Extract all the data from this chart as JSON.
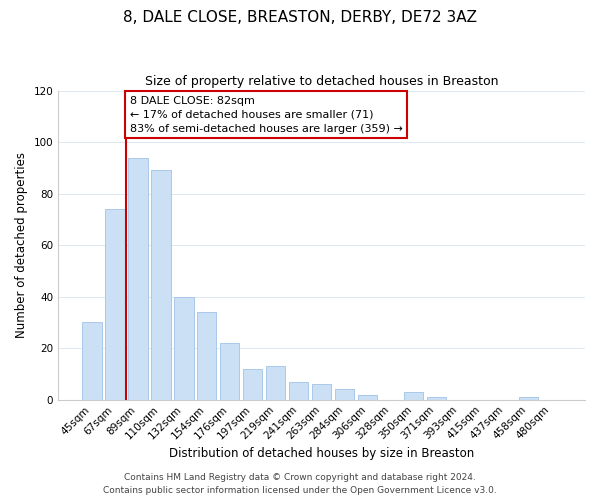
{
  "title": "8, DALE CLOSE, BREASTON, DERBY, DE72 3AZ",
  "subtitle": "Size of property relative to detached houses in Breaston",
  "xlabel": "Distribution of detached houses by size in Breaston",
  "ylabel": "Number of detached properties",
  "bar_labels": [
    "45sqm",
    "67sqm",
    "89sqm",
    "110sqm",
    "132sqm",
    "154sqm",
    "176sqm",
    "197sqm",
    "219sqm",
    "241sqm",
    "263sqm",
    "284sqm",
    "306sqm",
    "328sqm",
    "350sqm",
    "371sqm",
    "393sqm",
    "415sqm",
    "437sqm",
    "458sqm",
    "480sqm"
  ],
  "bar_values": [
    30,
    74,
    94,
    89,
    40,
    34,
    22,
    12,
    13,
    7,
    6,
    4,
    2,
    0,
    3,
    1,
    0,
    0,
    0,
    1,
    0
  ],
  "bar_color": "#cce0f5",
  "bar_edge_color": "#aac8e8",
  "vline_index": 2,
  "vline_color": "#cc0000",
  "annotation_text": "8 DALE CLOSE: 82sqm\n← 17% of detached houses are smaller (71)\n83% of semi-detached houses are larger (359) →",
  "annotation_box_color": "#ffffff",
  "annotation_box_edge": "#cc0000",
  "ylim": [
    0,
    120
  ],
  "yticks": [
    0,
    20,
    40,
    60,
    80,
    100,
    120
  ],
  "footer_line1": "Contains HM Land Registry data © Crown copyright and database right 2024.",
  "footer_line2": "Contains public sector information licensed under the Open Government Licence v3.0.",
  "background_color": "#ffffff",
  "grid_color": "#dce8f0",
  "title_fontsize": 11,
  "subtitle_fontsize": 9,
  "axis_label_fontsize": 8.5,
  "tick_fontsize": 7.5,
  "annotation_fontsize": 8,
  "footer_fontsize": 6.5
}
